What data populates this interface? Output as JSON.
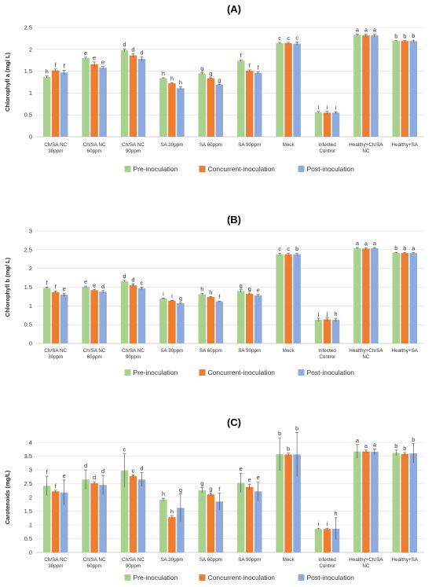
{
  "colors": {
    "pre": "#a9d18e",
    "concurrent": "#ed7d31",
    "post": "#8faadc"
  },
  "legend": [
    "Pre-inoculation",
    "Concurrent-inoculation",
    "Post-inoculation"
  ],
  "chart_data": [
    {
      "panel": "(A)",
      "type": "bar",
      "ylabel": "Chlorophyll a (mg/ L)",
      "ylim": [
        0,
        2.5
      ],
      "yticks": [
        "0",
        "0.5",
        "1",
        "1.5",
        "2",
        "2.5"
      ],
      "categories": [
        [
          "Ch/SA NC",
          "30ppm"
        ],
        [
          "Ch/SA NC",
          "60ppm"
        ],
        [
          "Ch/SA NC",
          "90ppm"
        ],
        [
          "SA 30ppm"
        ],
        [
          "SA 60ppm"
        ],
        [
          "SA 90ppm"
        ],
        [
          "Mock"
        ],
        [
          "Infected",
          "Control"
        ],
        [
          "Healthy+Ch/SA",
          "NC"
        ],
        [
          "Healthy+SA"
        ]
      ],
      "series": [
        {
          "name": "Pre-inoculation",
          "values": [
            1.37,
            1.8,
            1.98,
            1.34,
            1.45,
            1.74,
            2.14,
            0.56,
            2.33,
            2.19
          ],
          "errors": [
            0.02,
            0.02,
            0.03,
            0.01,
            0.02,
            0.02,
            0.02,
            0.02,
            0.02,
            0.01
          ],
          "letters": [
            "h",
            "e",
            "d",
            "h",
            "g",
            "f",
            "c",
            "i",
            "a",
            "b"
          ]
        },
        {
          "name": "Concurrent-inoculation",
          "values": [
            1.52,
            1.66,
            1.86,
            1.22,
            1.34,
            1.51,
            2.14,
            0.55,
            2.32,
            2.19
          ],
          "errors": [
            0.03,
            0.05,
            0.04,
            0.01,
            0.01,
            0.02,
            0.02,
            0.03,
            0.03,
            0.01
          ],
          "letters": [
            "f",
            "e",
            "d",
            "h",
            "g",
            "f",
            "c",
            "i",
            "a",
            "b"
          ]
        },
        {
          "name": "Post-inoculation",
          "values": [
            1.47,
            1.58,
            1.78,
            1.11,
            1.19,
            1.46,
            2.13,
            0.55,
            2.32,
            2.19
          ],
          "errors": [
            0.05,
            0.03,
            0.05,
            0.03,
            0.01,
            0.02,
            0.04,
            0.02,
            0.03,
            0.02
          ],
          "letters": [
            "f",
            "e",
            "d",
            "h",
            "g",
            "f",
            "c",
            "i",
            "a",
            "b"
          ]
        }
      ]
    },
    {
      "panel": "(B)",
      "type": "bar",
      "ylabel": "Chlorophyll b (mg/ L)",
      "ylim": [
        0,
        3
      ],
      "yticks": [
        "0",
        "0.5",
        "1",
        "1.5",
        "2",
        "2.5",
        "3"
      ],
      "categories": [
        [
          "Ch/SA NC",
          "30ppm"
        ],
        [
          "Ch/SA NC",
          "60ppm"
        ],
        [
          "Ch/SA NC",
          "90ppm"
        ],
        [
          "SA 30ppm"
        ],
        [
          "SA 60ppm"
        ],
        [
          "SA 90ppm"
        ],
        [
          "Mock"
        ],
        [
          "Infected",
          "Control"
        ],
        [
          "Healthy+Ch/SA",
          "NC"
        ],
        [
          "Healthy+SA"
        ]
      ],
      "series": [
        {
          "name": "Pre-inoculation",
          "values": [
            1.48,
            1.51,
            1.66,
            1.2,
            1.31,
            1.4,
            2.38,
            0.63,
            2.54,
            2.42
          ],
          "errors": [
            0.02,
            0.02,
            0.02,
            0.01,
            0.02,
            0.03,
            0.03,
            0.04,
            0.02,
            0.01
          ],
          "letters": [
            "f",
            "e",
            "d",
            "i",
            "h",
            "g",
            "c",
            "j",
            "a",
            "b"
          ]
        },
        {
          "name": "Concurrent-inoculation",
          "values": [
            1.37,
            1.42,
            1.55,
            1.14,
            1.24,
            1.32,
            2.38,
            0.64,
            2.53,
            2.41
          ],
          "errors": [
            0.02,
            0.02,
            0.03,
            0.01,
            0.01,
            0.02,
            0.03,
            0.04,
            0.02,
            0.01
          ],
          "letters": [
            "f",
            "e",
            "d",
            "i",
            "h",
            "g",
            "c",
            "j",
            "a",
            "b"
          ]
        },
        {
          "name": "Post-inoculation",
          "values": [
            1.3,
            1.38,
            1.47,
            1.07,
            1.12,
            1.28,
            2.38,
            0.63,
            2.54,
            2.41
          ],
          "errors": [
            0.04,
            0.03,
            0.03,
            0.02,
            0.01,
            0.03,
            0.03,
            0.04,
            0.02,
            0.01
          ],
          "letters": [
            "e",
            "d",
            "c",
            "g",
            "f",
            "e",
            "b",
            "h",
            "a",
            "a"
          ]
        }
      ]
    },
    {
      "panel": "(C)",
      "type": "bar",
      "ylabel": "Carotenoids (mg/L)",
      "ylim": [
        0,
        4
      ],
      "yticks": [
        "0",
        "0.5",
        "1",
        "1.5",
        "2",
        "2.5",
        "3",
        "3.5",
        "4"
      ],
      "categories": [
        [
          "Ch/SA NC",
          "30ppm"
        ],
        [
          "Ch/SA NC",
          "60ppm"
        ],
        [
          "Ch/SA NC",
          "90ppm"
        ],
        [
          "SA 30ppm"
        ],
        [
          "SA 60ppm"
        ],
        [
          "SA 90ppm"
        ],
        [
          "Mock"
        ],
        [
          "Infected",
          "Control"
        ],
        [
          "Healthy+Ch/SA",
          "NC"
        ],
        [
          "Healthy+SA"
        ]
      ],
      "series": [
        {
          "name": "Pre-inoculation",
          "values": [
            2.42,
            2.65,
            2.98,
            1.92,
            2.26,
            2.53,
            3.57,
            0.85,
            3.67,
            3.62
          ],
          "errors": [
            0.35,
            0.35,
            0.6,
            0.05,
            0.1,
            0.35,
            0.6,
            0.03,
            0.25,
            0.1
          ],
          "letters": [
            "f",
            "d",
            "c",
            "h",
            "g",
            "e",
            "b",
            "i",
            "a",
            "b"
          ]
        },
        {
          "name": "Concurrent-inoculation",
          "values": [
            2.22,
            2.52,
            2.77,
            1.28,
            2.11,
            2.38,
            3.56,
            0.85,
            3.67,
            3.58
          ],
          "errors": [
            0.04,
            0.05,
            0.05,
            0.05,
            0.05,
            0.1,
            0.05,
            0.03,
            0.05,
            0.05
          ],
          "letters": [
            "f",
            "d",
            "c",
            "h",
            "g",
            "e",
            "b",
            "i",
            "a",
            "b"
          ]
        },
        {
          "name": "Post-inoculation",
          "values": [
            2.18,
            2.45,
            2.65,
            1.62,
            1.85,
            2.22,
            3.56,
            0.86,
            3.66,
            3.6
          ],
          "errors": [
            0.45,
            0.35,
            0.25,
            0.5,
            0.3,
            0.35,
            0.8,
            0.4,
            0.1,
            0.35
          ],
          "letters": [
            "e",
            "d",
            "d",
            "g",
            "f",
            "e",
            "b",
            "h",
            "a",
            "b"
          ]
        }
      ]
    }
  ]
}
